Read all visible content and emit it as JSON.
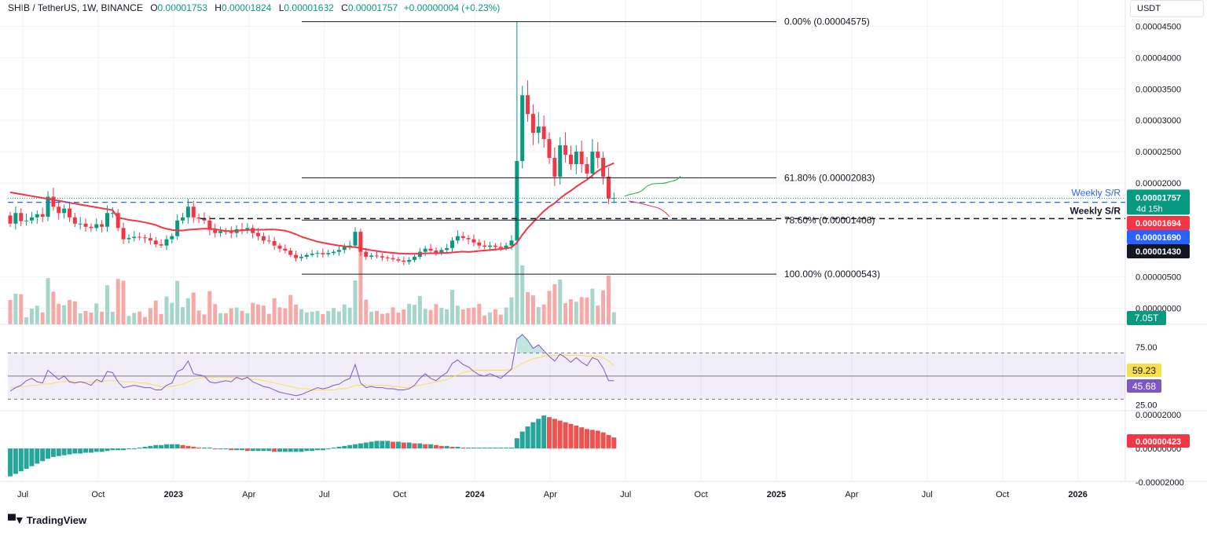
{
  "legend": {
    "symbol": "SHIB / TetherUS, 1W, BINANCE",
    "open_label": "O",
    "open": "0.00001753",
    "high_label": "H",
    "high": "0.00001824",
    "low_label": "L",
    "low": "0.00001632",
    "close_label": "C",
    "close": "0.00001757",
    "change": "+0.00000004 (+0.23%)"
  },
  "currency_button": "USDT",
  "brand": "TradingView",
  "colors": {
    "up": "#089981",
    "down": "#f23645",
    "sma": "#f23645",
    "rsi": "#7e57c2",
    "rsi_ma": "#f7e04b",
    "level_blue": "#2962ff",
    "label_blue": "#2962ff",
    "black": "#131722"
  },
  "chart_data": [
    {
      "type": "candlestick",
      "pane": "price",
      "x_axis": {
        "ticks": [
          "Jul",
          "Oct",
          "2023",
          "Apr",
          "Jul",
          "Oct",
          "2024",
          "Apr",
          "Jul",
          "Oct",
          "2025",
          "Apr",
          "Jul",
          "Oct",
          "2026"
        ]
      },
      "y_axis": {
        "ticks": [
          "0.00004500",
          "0.00004000",
          "0.00003500",
          "0.00003000",
          "0.00002500",
          "0.00002000",
          "0.00000500",
          "0.00000000"
        ],
        "ylim": [
          -1.7e-06,
          4.67e-05
        ]
      },
      "last_price": "0.00001757",
      "countdown": "4d 15h",
      "price_labels": [
        {
          "text": "0.00001694",
          "color": "#f23645"
        },
        {
          "text": "0.00001690",
          "color": "#2962ff"
        },
        {
          "text": "0.00001430",
          "color": "#131722"
        }
      ],
      "volume_label": "7.05T",
      "fib_levels": [
        {
          "text": "0.00% (0.00004575)",
          "value": 4.575e-05
        },
        {
          "text": "61.80% (0.00002083)",
          "value": 2.083e-05
        },
        {
          "text": "78.60% (0.00001406)",
          "value": 1.406e-05
        },
        {
          "text": "100.00% (0.00000543)",
          "value": 5.43e-06
        }
      ],
      "sr_lines": [
        {
          "text": "Weekly S/R",
          "value": 1.69e-05,
          "style": "blue-dashed"
        },
        {
          "text": "Weekly S/R",
          "value": 1.43e-05,
          "style": "black-dashed"
        }
      ],
      "closes": [
        1.35e-05,
        1.52e-05,
        1.39e-05,
        1.4e-05,
        1.45e-05,
        1.5e-05,
        1.46e-05,
        1.78e-05,
        1.62e-05,
        1.52e-05,
        1.59e-05,
        1.45e-05,
        1.35e-05,
        1.35e-05,
        1.3e-05,
        1.28e-05,
        1.34e-05,
        1.3e-05,
        1.52e-05,
        1.52e-05,
        1.28e-05,
        1.1e-05,
        1.12e-05,
        1.14e-05,
        1.13e-05,
        1.12e-05,
        1.08e-05,
        1.02e-05,
        1e-05,
        1.1e-05,
        1.15e-05,
        1.4e-05,
        1.45e-05,
        1.62e-05,
        1.45e-05,
        1.43e-05,
        1.4e-05,
        1.25e-05,
        1.2e-05,
        1.23e-05,
        1.22e-05,
        1.2e-05,
        1.26e-05,
        1.24e-05,
        1.28e-05,
        1.2e-05,
        1.15e-05,
        1.08e-05,
        1.07e-05,
        1e-05,
        9.5e-06,
        9.2e-06,
        8.5e-06,
        8e-06,
        8.2e-06,
        8.5e-06,
        8.7e-06,
        8.8e-06,
        8.6e-06,
        8.8e-06,
        9e-06,
        9.3e-06,
        9.8e-06,
        1e-05,
        1.22e-05,
        9e-06,
        8.2e-06,
        8.4e-06,
        8.3e-06,
        8.1e-06,
        8e-06,
        7.8e-06,
        7.6e-06,
        7.4e-06,
        7.7e-06,
        8.2e-06,
        9e-06,
        9.5e-06,
        9.2e-06,
        8.8e-06,
        9.3e-06,
        9.6e-06,
        1.08e-05,
        1.15e-05,
        1.12e-05,
        1.1e-05,
        1.05e-05,
        1e-05,
        9.8e-06,
        1e-05,
        9.8e-06,
        9.6e-06,
        1e-05,
        1.08e-05,
        2.35e-05,
        3.4e-05,
        3.1e-05,
        2.8e-05,
        2.9e-05,
        2.7e-05,
        2.4e-05,
        2.1e-05,
        2.6e-05,
        2.45e-05,
        2.3e-05,
        2.5e-05,
        2.3e-05,
        2.15e-05,
        2.5e-05,
        2.4e-05,
        2.1e-05,
        1.75e-05,
        1.76e-05
      ],
      "sma_line": "red moving average over closes",
      "projections": [
        "green-up-arrow",
        "red-down-arrow"
      ]
    },
    {
      "type": "line",
      "pane": "rsi",
      "y_axis": {
        "ticks": [
          "75.00",
          "25.00"
        ],
        "band": [
          30,
          70
        ],
        "mid": 50,
        "ylim": [
          20,
          88
        ]
      },
      "rsi_label": "45.68",
      "ma_label": "59.23",
      "rsi_values": [
        37,
        40,
        42,
        46,
        48,
        45,
        44,
        55,
        51,
        47,
        50,
        45,
        44,
        45,
        44,
        42,
        47,
        45,
        54,
        53,
        45,
        40,
        41,
        42,
        41,
        40,
        40,
        38,
        38,
        42,
        44,
        54,
        56,
        63,
        52,
        51,
        50,
        45,
        44,
        45,
        46,
        45,
        49,
        47,
        49,
        45,
        43,
        41,
        40,
        38,
        36,
        35,
        34,
        33,
        34,
        36,
        38,
        40,
        39,
        40,
        42,
        43,
        46,
        48,
        60,
        44,
        40,
        41,
        40,
        40,
        39,
        39,
        38,
        38,
        39,
        42,
        48,
        52,
        48,
        46,
        50,
        53,
        61,
        64,
        60,
        58,
        54,
        51,
        50,
        52,
        50,
        48,
        52,
        56,
        82,
        86,
        81,
        74,
        77,
        72,
        67,
        63,
        69,
        66,
        62,
        66,
        62,
        59,
        66,
        64,
        57,
        46,
        46
      ],
      "ma_values": [
        40,
        40,
        41,
        41,
        42,
        42,
        43,
        43,
        44,
        45,
        45,
        46,
        45,
        45,
        45,
        45,
        45,
        45,
        46,
        46,
        46,
        45,
        45,
        45,
        44,
        44,
        43,
        42,
        41,
        41,
        41,
        42,
        43,
        45,
        47,
        48,
        49,
        49,
        49,
        49,
        49,
        49,
        48,
        48,
        48,
        47,
        47,
        46,
        45,
        44,
        43,
        42,
        41,
        40,
        39,
        39,
        38,
        38,
        38,
        38,
        38,
        39,
        39,
        40,
        42,
        42,
        42,
        42,
        42,
        42,
        42,
        41,
        41,
        40,
        40,
        41,
        42,
        43,
        44,
        45,
        46,
        47,
        49,
        51,
        53,
        54,
        55,
        55,
        55,
        55,
        55,
        55,
        55,
        56,
        58,
        61,
        63,
        65,
        66,
        67,
        68,
        68,
        68,
        68,
        68,
        68,
        68,
        67,
        67,
        67,
        66,
        63,
        59
      ]
    },
    {
      "type": "histogram",
      "pane": "macd",
      "y_axis": {
        "ticks": [
          "0.00002000",
          "0.00000000",
          "-0.00002000"
        ],
        "ylim": [
          -3.8e-06,
          4e-06
        ]
      },
      "last_label": "0.00000423",
      "values": [
        -3.3e-06,
        -3e-06,
        -2.7e-06,
        -2.4e-06,
        -2.1e-06,
        -1.8e-06,
        -1.5e-06,
        -1.2e-06,
        -1e-06,
        -9e-07,
        -8e-07,
        -7e-07,
        -6e-07,
        -6e-07,
        -5e-07,
        -5e-07,
        -4e-07,
        -4e-07,
        -3e-07,
        -2e-07,
        -2e-07,
        -2e-07,
        -1e-07,
        -1e-07,
        1e-07,
        2e-07,
        3e-07,
        4e-07,
        4e-07,
        5e-07,
        5e-07,
        5e-07,
        4e-07,
        3e-07,
        2e-07,
        1e-07,
        1e-07,
        1e-07,
        -1e-07,
        -1e-07,
        -1e-07,
        -2e-07,
        -2e-07,
        -2e-07,
        -3e-07,
        -3e-07,
        -3e-07,
        -3e-07,
        -3e-07,
        -4e-07,
        -4e-07,
        -4e-07,
        -4e-07,
        -4e-07,
        -4e-07,
        -3e-07,
        -3e-07,
        -2e-07,
        -2e-07,
        -1e-07,
        1e-07,
        2e-07,
        3e-07,
        4e-07,
        5e-07,
        6e-07,
        7e-07,
        8e-07,
        9e-07,
        9e-07,
        9e-07,
        8e-07,
        8e-07,
        7e-07,
        7e-07,
        6e-07,
        6e-07,
        5e-07,
        5e-07,
        4e-07,
        3e-07,
        3e-07,
        2e-07,
        2e-07,
        1e-07,
        1e-07,
        1e-07,
        1e-07,
        1e-07,
        1e-07,
        1e-07,
        1e-07,
        1e-07,
        1e-07,
        1.2e-06,
        2e-06,
        2.6e-06,
        3.1e-06,
        3.5e-06,
        3.9e-06,
        3.7e-06,
        3.5e-06,
        3.3e-06,
        3.1e-06,
        2.9e-06,
        2.7e-06,
        2.5e-06,
        2.3e-06,
        2.2e-06,
        2.1e-06,
        1.9e-06,
        1.6e-06,
        1.3e-06
      ]
    }
  ]
}
